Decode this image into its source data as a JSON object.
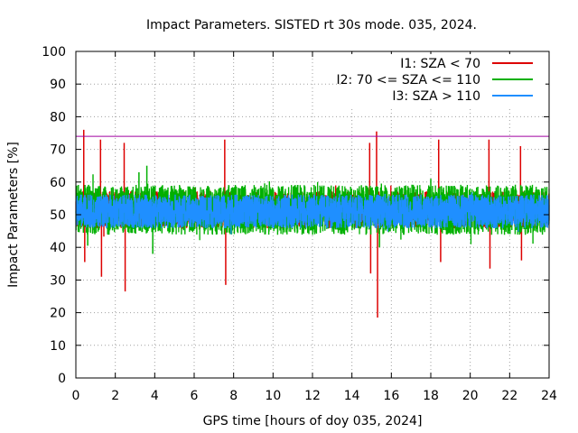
{
  "chart_data": {
    "type": "line",
    "title": "Impact Parameters. SISTED rt 30s mode. 035, 2024.",
    "xlabel": "GPS time [hours of doy 035, 2024]",
    "ylabel": "Impact Parameters [%]",
    "xlim": [
      0,
      24
    ],
    "ylim": [
      0,
      100
    ],
    "x_ticks": [
      0,
      2,
      4,
      6,
      8,
      10,
      12,
      14,
      16,
      18,
      20,
      22,
      24
    ],
    "y_ticks": [
      0,
      10,
      20,
      30,
      40,
      50,
      60,
      70,
      80,
      90,
      100
    ],
    "grid": true,
    "legend_position": "top-right",
    "reference_line": {
      "value": 74,
      "color": "#a000a0"
    },
    "series": [
      {
        "name": "I1: SZA < 70",
        "color": "#dd0000",
        "description": "noisy band around 50%",
        "band_low": 46,
        "band_high": 57,
        "spikes": [
          {
            "x": 0.4,
            "value": 76
          },
          {
            "x": 0.45,
            "value": 35.5
          },
          {
            "x": 1.25,
            "value": 73
          },
          {
            "x": 1.3,
            "value": 31
          },
          {
            "x": 2.45,
            "value": 72
          },
          {
            "x": 2.5,
            "value": 26.5
          },
          {
            "x": 7.55,
            "value": 73
          },
          {
            "x": 7.6,
            "value": 28.5
          },
          {
            "x": 14.9,
            "value": 72
          },
          {
            "x": 14.95,
            "value": 32
          },
          {
            "x": 15.25,
            "value": 75.5
          },
          {
            "x": 15.3,
            "value": 18.5
          },
          {
            "x": 18.4,
            "value": 73
          },
          {
            "x": 18.5,
            "value": 35.5
          },
          {
            "x": 20.95,
            "value": 73
          },
          {
            "x": 21.0,
            "value": 33.5
          },
          {
            "x": 22.55,
            "value": 71
          },
          {
            "x": 22.6,
            "value": 36
          }
        ]
      },
      {
        "name": "I2: 70 <= SZA <= 110",
        "color": "#00b000",
        "description": "noisy band around 50%",
        "band_low": 44,
        "band_high": 59,
        "spikes": [
          {
            "x": 3.6,
            "value": 65
          },
          {
            "x": 3.2,
            "value": 63
          },
          {
            "x": 3.9,
            "value": 38
          },
          {
            "x": 0.6,
            "value": 40.5
          },
          {
            "x": 15.4,
            "value": 40
          },
          {
            "x": 18.0,
            "value": 61
          }
        ]
      },
      {
        "name": "I3: SZA > 110",
        "color": "#1f8fff",
        "description": "dense band around 51%",
        "band_low": 46,
        "band_high": 56,
        "spikes": []
      }
    ]
  }
}
